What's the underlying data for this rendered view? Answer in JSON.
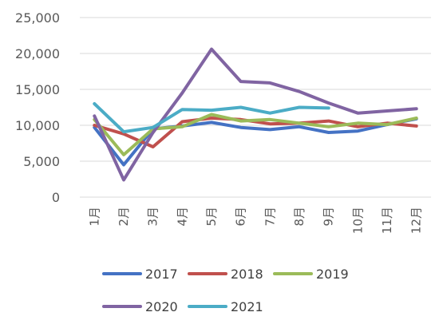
{
  "chart_data": {
    "type": "line",
    "title": "",
    "xlabel": "",
    "ylabel": "",
    "categories": [
      "1月",
      "2月",
      "3月",
      "4月",
      "5月",
      "6月",
      "7月",
      "8月",
      "9月",
      "10月",
      "11月",
      "12月"
    ],
    "ylim": [
      0,
      25000
    ],
    "yticks": [
      {
        "value": 0,
        "label": "0"
      },
      {
        "value": 5000,
        "label": "5,000"
      },
      {
        "value": 10000,
        "label": "10,000"
      },
      {
        "value": 15000,
        "label": "15,000"
      },
      {
        "value": 20000,
        "label": "20,000"
      },
      {
        "value": 25000,
        "label": "25,000"
      }
    ],
    "grid": "horizontal",
    "legend_position": "bottom",
    "series": [
      {
        "name": "2017",
        "color": "#4472C4",
        "values": [
          9700,
          4500,
          9500,
          9900,
          10400,
          9700,
          9400,
          9800,
          9000,
          9200,
          10100,
          10900
        ]
      },
      {
        "name": "2018",
        "color": "#C0504D",
        "values": [
          10000,
          8800,
          7000,
          10500,
          11000,
          10800,
          10200,
          10300,
          10600,
          9800,
          10300,
          9900
        ]
      },
      {
        "name": "2019",
        "color": "#9BBB59",
        "values": [
          10800,
          5900,
          9500,
          9800,
          11500,
          10600,
          10800,
          10300,
          9800,
          10300,
          10100,
          11000
        ]
      },
      {
        "name": "2020",
        "color": "#8064A2",
        "values": [
          11300,
          2400,
          9000,
          14500,
          20600,
          16100,
          15900,
          14700,
          13100,
          11700,
          12000,
          12300
        ]
      },
      {
        "name": "2021",
        "color": "#4BACC6",
        "values": [
          13000,
          9100,
          9700,
          12200,
          12100,
          12500,
          11700,
          12500,
          12400,
          null,
          null,
          null
        ]
      }
    ]
  }
}
